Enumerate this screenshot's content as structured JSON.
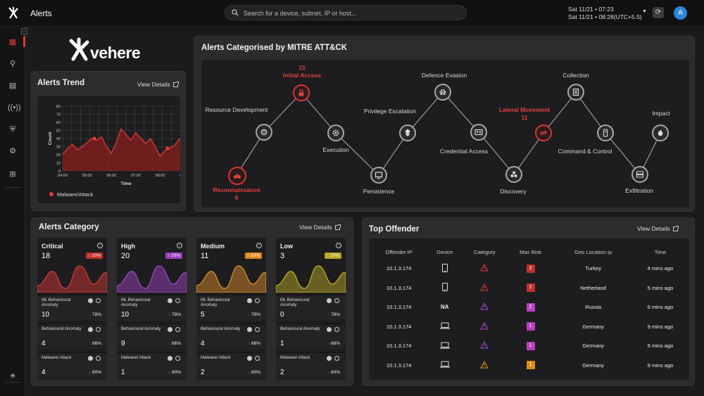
{
  "topbar": {
    "title": "Alerts",
    "search_placeholder": "Search for a device, subnet, IP or host...",
    "datetime_line1": "Sat 11/21 • 07:23",
    "datetime_line2": "Sat 11/21 • 08:28(UTC+5.5)",
    "avatar": "A"
  },
  "brand": {
    "name": "vehere"
  },
  "trend": {
    "title": "Alerts Trend",
    "view_details": "View Details",
    "y_label": "Count",
    "x_label": "Time",
    "legend": "Malware/Attack",
    "series_color": "#e0393a"
  },
  "chart_data": {
    "type": "area",
    "title": "Alerts Trend",
    "xlabel": "Time",
    "ylabel": "Count",
    "ylim": [
      0,
      80
    ],
    "yticks": [
      "0",
      "10",
      "20",
      "30",
      "40",
      "50",
      "60",
      "70",
      "80"
    ],
    "xticks": [
      "04:00",
      "05:00",
      "06:00",
      "07:00",
      "08:00",
      "09:00"
    ],
    "grid": true,
    "legend_position": "bottom",
    "series": [
      {
        "name": "Malware/Attack",
        "x": [
          4.0,
          4.2,
          4.4,
          4.6,
          4.8,
          5.0,
          5.2,
          5.4,
          5.6,
          5.8,
          6.0,
          6.2,
          6.4,
          6.6,
          6.8,
          7.0,
          7.2,
          7.4,
          7.6,
          7.8,
          8.0,
          8.2,
          8.4,
          8.6,
          8.8,
          9.0,
          9.2
        ],
        "values": [
          20,
          28,
          33,
          26,
          30,
          35,
          40,
          38,
          42,
          30,
          22,
          35,
          52,
          45,
          38,
          47,
          41,
          34,
          40,
          30,
          18,
          25,
          28,
          32,
          40,
          38,
          45
        ],
        "markers_at": [
          5.3,
          8.3
        ]
      }
    ]
  },
  "mitre": {
    "title": "Alerts Categorised by MITRE ATT&CK",
    "nodes": [
      {
        "label": "Reconnaissance",
        "count": "9",
        "alert": true
      },
      {
        "label": "Resource Development",
        "alert": false
      },
      {
        "label": "Initial Access",
        "count": "15",
        "alert": true
      },
      {
        "label": "Execution",
        "alert": false
      },
      {
        "label": "Persistence",
        "alert": false
      },
      {
        "label": "Privilege Escalation",
        "alert": false
      },
      {
        "label": "Defence Evasion",
        "alert": false
      },
      {
        "label": "Credential Access",
        "alert": false
      },
      {
        "label": "Discovery",
        "alert": false
      },
      {
        "label": "Lateral Movement",
        "count": "11",
        "alert": true
      },
      {
        "label": "Collection",
        "alert": false
      },
      {
        "label": "Command & Control",
        "alert": false
      },
      {
        "label": "Exfiltration",
        "alert": false
      },
      {
        "label": "Impact",
        "alert": false
      }
    ]
  },
  "category": {
    "title": "Alerts Category",
    "view_details": "View Details",
    "cols": [
      {
        "name": "Critical",
        "count": "18",
        "badge": "↑ 10%",
        "color": "#e0393a",
        "badge_color": "#c0302e",
        "subs": [
          {
            "label": "ML Behavioural Anomaly",
            "value": "10",
            "pct": "78%",
            "dir": "up"
          },
          {
            "label": "Behavioural Anomaly",
            "value": "4",
            "pct": "66%",
            "dir": "up"
          },
          {
            "label": "Malware/ Attack",
            "value": "4",
            "pct": "60%",
            "dir": "down"
          }
        ]
      },
      {
        "name": "High",
        "count": "20",
        "badge": "↑ 20%",
        "color": "#a648c8",
        "badge_color": "#9b3fc0",
        "subs": [
          {
            "label": "ML Behavioural Anomaly",
            "value": "10",
            "pct": "78%",
            "dir": "up"
          },
          {
            "label": "Behavioural Anomaly",
            "value": "9",
            "pct": "66%",
            "dir": "up"
          },
          {
            "label": "Malware/ Attack",
            "value": "1",
            "pct": "60%",
            "dir": "down"
          }
        ]
      },
      {
        "name": "Medium",
        "count": "11",
        "badge": "↑ 10%",
        "color": "#e8952a",
        "badge_color": "#e08a1e",
        "subs": [
          {
            "label": "ML Behavioural Anomaly",
            "value": "5",
            "pct": "78%",
            "dir": "up"
          },
          {
            "label": "Behavioural Anomaly",
            "value": "4",
            "pct": "66%",
            "dir": "up"
          },
          {
            "label": "Malware/ Attack",
            "value": "2",
            "pct": "60%",
            "dir": "down"
          }
        ]
      },
      {
        "name": "Low",
        "count": "3",
        "badge": "↑ 10%",
        "color": "#c6b425",
        "badge_color": "#b8a722",
        "subs": [
          {
            "label": "ML Behavioural Anomaly",
            "value": "0",
            "pct": "78%",
            "dir": "up"
          },
          {
            "label": "Behavioural Anomaly",
            "value": "1",
            "pct": "66%",
            "dir": "up"
          },
          {
            "label": "Malware/ Attack",
            "value": "2",
            "pct": "60%",
            "dir": "down"
          }
        ]
      }
    ]
  },
  "offender": {
    "title": "Top Offender",
    "view_details": "View Details",
    "headers": [
      "Offender IP",
      "Device",
      "Category",
      "Max Risk",
      "Geo Location Ip",
      "Time"
    ],
    "rows": [
      {
        "ip": "10.1.3.174",
        "device": "phone",
        "cat_color": "#e0393a",
        "risk": "2",
        "risk_color": "#c0302e",
        "geo": "Turkey",
        "time": "4 mins ago"
      },
      {
        "ip": "10.1.3.174",
        "device": "phone",
        "cat_color": "#e0393a",
        "risk": "2",
        "risk_color": "#c0302e",
        "geo": "Netherland",
        "time": "5 mins ago"
      },
      {
        "ip": "10.1.3.174",
        "device": "NA",
        "cat_color": "#a648c8",
        "risk": "2",
        "risk_color": "#b83fc0",
        "geo": "Russia",
        "time": "6 mins ago"
      },
      {
        "ip": "10.1.3.174",
        "device": "laptop",
        "cat_color": "#a648c8",
        "risk": "1",
        "risk_color": "#b83fc0",
        "geo": "Germany",
        "time": "9 mins ago"
      },
      {
        "ip": "10.1.3.174",
        "device": "laptop",
        "cat_color": "#a648c8",
        "risk": "1",
        "risk_color": "#b83fc0",
        "geo": "Germany",
        "time": "9 mins ago"
      },
      {
        "ip": "10.1.3.174",
        "device": "laptop",
        "cat_color": "#e8952a",
        "risk": "1",
        "risk_color": "#e08a1e",
        "geo": "Germany",
        "time": "9 mins ago"
      }
    ]
  }
}
